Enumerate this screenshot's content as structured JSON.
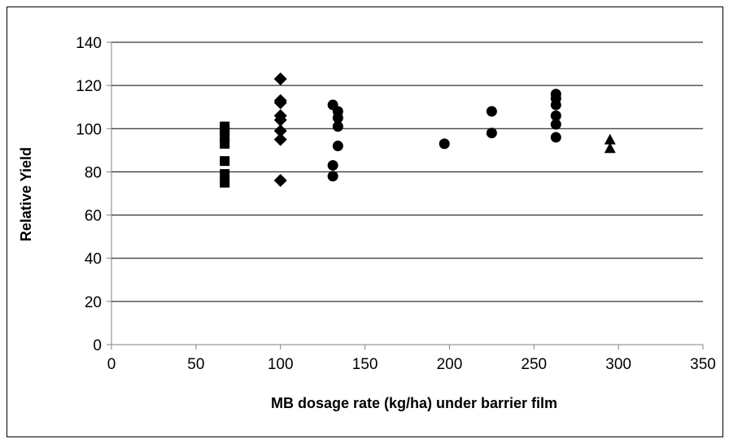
{
  "chart_data": {
    "type": "scatter",
    "xlabel": "MB dosage rate (kg/ha) under barrier film",
    "ylabel": "Relative Yield",
    "xlim": [
      0,
      350
    ],
    "ylim": [
      0,
      140
    ],
    "x_ticks": [
      "0",
      "50",
      "100",
      "150",
      "200",
      "250",
      "300",
      "350"
    ],
    "y_ticks": [
      "0",
      "20",
      "40",
      "60",
      "80",
      "100",
      "120",
      "140"
    ],
    "grid": "horizontal",
    "legend": "none",
    "series": [
      {
        "marker": "square",
        "points": [
          [
            67,
            75
          ],
          [
            67,
            79
          ],
          [
            67,
            85
          ],
          [
            67,
            93
          ],
          [
            67,
            96
          ],
          [
            67,
            99
          ],
          [
            67,
            101
          ]
        ]
      },
      {
        "marker": "diamond",
        "points": [
          [
            100,
            123
          ],
          [
            100,
            113
          ],
          [
            100,
            112
          ],
          [
            100,
            106
          ],
          [
            100,
            104
          ],
          [
            100,
            99
          ],
          [
            100,
            95
          ],
          [
            100,
            76
          ]
        ]
      },
      {
        "marker": "circle",
        "points": [
          [
            131,
            111
          ],
          [
            134,
            108
          ],
          [
            134,
            105
          ],
          [
            134,
            101
          ],
          [
            134,
            92
          ],
          [
            131,
            83
          ],
          [
            131,
            78
          ],
          [
            197,
            93
          ],
          [
            225,
            108
          ],
          [
            225,
            98
          ],
          [
            263,
            116
          ],
          [
            263,
            114
          ],
          [
            263,
            111
          ],
          [
            263,
            106
          ],
          [
            263,
            102
          ],
          [
            263,
            96
          ]
        ]
      },
      {
        "marker": "triangle",
        "points": [
          [
            295,
            95
          ],
          [
            295,
            91
          ]
        ]
      }
    ],
    "colors": {
      "marker": "#000000",
      "grid": "#000000",
      "axis": "#808080"
    }
  }
}
